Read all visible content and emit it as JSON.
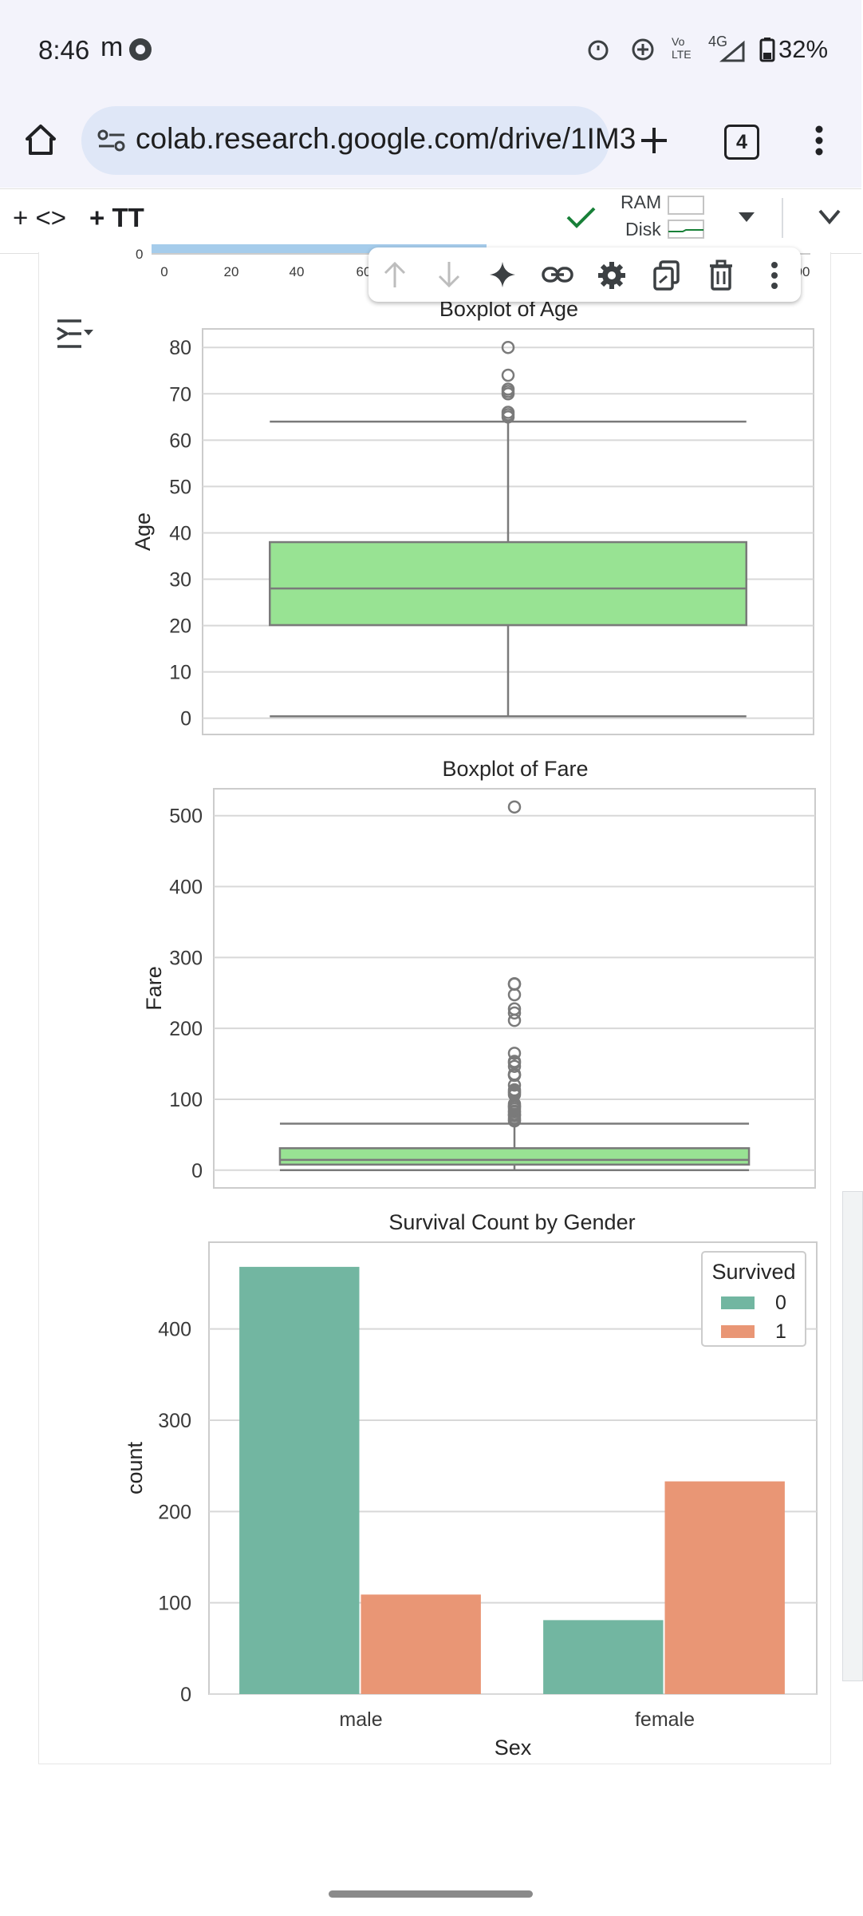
{
  "status_bar": {
    "time": "8:46",
    "carrier_mark": "m",
    "network": "4G",
    "volte": "Vo LTE",
    "battery": "32%"
  },
  "browser": {
    "url": "colab.research.google.com/drive/1IM3",
    "tab_count": "4"
  },
  "colab_toolbar": {
    "add_code": "+ <>",
    "add_text": "+ TT",
    "ram_label": "RAM",
    "disk_label": "Disk"
  },
  "top_partial_axis": {
    "ticks": [
      "0",
      "20",
      "40",
      "60",
      "00"
    ],
    "zero_label": "0"
  },
  "chart_data": [
    {
      "type": "box",
      "title": "Boxplot of Age",
      "xlabel": "",
      "ylabel": "Age",
      "ylim": [
        -3.5,
        84
      ],
      "yticks": [
        0,
        10,
        20,
        30,
        40,
        50,
        60,
        70,
        80
      ],
      "box": {
        "min": 0.42,
        "q1": 20.1,
        "median": 28,
        "q3": 38,
        "max": 64
      },
      "outliers": [
        65,
        65.5,
        66,
        70,
        70.5,
        71,
        74,
        80
      ],
      "color": "#98e393"
    },
    {
      "type": "box",
      "title": "Boxplot of Fare",
      "xlabel": "",
      "ylabel": "Fare",
      "ylim": [
        -25,
        538
      ],
      "yticks": [
        0,
        100,
        200,
        300,
        400,
        500
      ],
      "box": {
        "min": 0,
        "q1": 7.9,
        "median": 14.5,
        "q3": 31,
        "max": 65.6
      },
      "outliers": [
        69.5,
        71,
        73.5,
        76.7,
        77.9,
        79.2,
        82.2,
        83.2,
        86.5,
        89.1,
        90,
        91.1,
        93.5,
        106.4,
        108.9,
        110.9,
        113.3,
        120,
        133.7,
        134.5,
        135.6,
        146.5,
        151.6,
        153.5,
        164.9,
        211.3,
        221.8,
        227.5,
        247.5,
        262.4,
        263,
        512.3
      ],
      "color": "#98e393"
    },
    {
      "type": "bar",
      "title": "Survival Count by Gender",
      "xlabel": "Sex",
      "ylabel": "count",
      "categories": [
        "male",
        "female"
      ],
      "ylim": [
        0,
        495
      ],
      "yticks": [
        0,
        100,
        200,
        300,
        400
      ],
      "legend_title": "Survived",
      "legend_position": "top-right",
      "series": [
        {
          "name": "0",
          "values": [
            468,
            81
          ],
          "color": "#72b6a1"
        },
        {
          "name": "1",
          "values": [
            109,
            233
          ],
          "color": "#e99675"
        }
      ]
    }
  ],
  "colors": {
    "check": "#188038",
    "box_line": "#7a7a7a",
    "grid": "#d8d8d8"
  }
}
